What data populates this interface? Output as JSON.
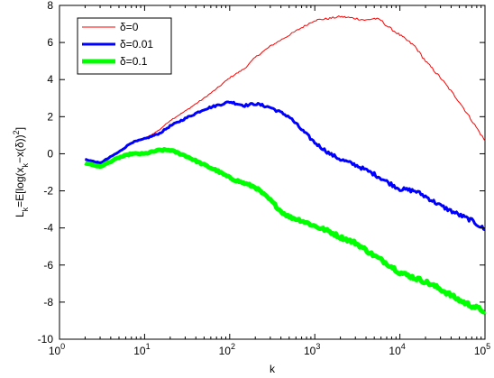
{
  "chart_data": {
    "type": "line",
    "title": "",
    "xlabel": "k",
    "ylabel": "L_k=E[log(x_k−x(δ))²]",
    "x_scale": "log",
    "xlim": [
      1,
      100000
    ],
    "ylim": [
      -10,
      8
    ],
    "grid": false,
    "legend_position": "top-left",
    "x_ticks": [
      {
        "value": 1,
        "base": "10",
        "exp": "0"
      },
      {
        "value": 10,
        "base": "10",
        "exp": "1"
      },
      {
        "value": 100,
        "base": "10",
        "exp": "2"
      },
      {
        "value": 1000,
        "base": "10",
        "exp": "3"
      },
      {
        "value": 10000,
        "base": "10",
        "exp": "4"
      },
      {
        "value": 100000,
        "base": "10",
        "exp": "5"
      }
    ],
    "y_ticks": [
      "-10",
      "-8",
      "-6",
      "-4",
      "-2",
      "0",
      "2",
      "4",
      "6",
      "8"
    ],
    "series": [
      {
        "name": "δ=0",
        "color": "#ff0000",
        "linewidth": 1,
        "x": [
          2,
          3,
          5,
          7,
          10,
          15,
          20,
          30,
          50,
          70,
          100,
          150,
          200,
          300,
          500,
          700,
          1000,
          1500,
          2000,
          3000,
          4000,
          5000,
          6000,
          7000,
          10000,
          15000,
          20000,
          30000,
          50000,
          70000,
          100000
        ],
        "y": [
          -0.3,
          -0.6,
          0.1,
          0.6,
          0.8,
          1.3,
          1.8,
          2.3,
          3.0,
          3.5,
          4.1,
          4.6,
          5.2,
          5.8,
          6.4,
          6.8,
          7.2,
          7.3,
          7.4,
          7.3,
          7.2,
          7.3,
          7.2,
          6.9,
          6.4,
          5.8,
          5.0,
          4.1,
          2.8,
          1.8,
          0.7
        ]
      },
      {
        "name": "δ=0.01",
        "color": "#0000ff",
        "linewidth": 3,
        "x": [
          2,
          3,
          5,
          7,
          10,
          15,
          20,
          30,
          50,
          70,
          100,
          150,
          200,
          300,
          500,
          700,
          1000,
          1500,
          2000,
          3000,
          5000,
          7000,
          10000,
          15000,
          20000,
          30000,
          50000,
          70000,
          100000
        ],
        "y": [
          -0.3,
          -0.5,
          0.1,
          0.6,
          0.8,
          1.1,
          1.5,
          1.9,
          2.4,
          2.6,
          2.8,
          2.6,
          2.7,
          2.5,
          2.0,
          1.3,
          0.6,
          0.0,
          -0.3,
          -0.6,
          -1.1,
          -1.5,
          -1.9,
          -2.0,
          -2.3,
          -2.8,
          -3.3,
          -3.6,
          -4.1
        ]
      },
      {
        "name": "δ=0.1",
        "color": "#00ff00",
        "linewidth": 5,
        "x": [
          2,
          3,
          5,
          7,
          10,
          15,
          20,
          30,
          50,
          70,
          100,
          150,
          200,
          300,
          400,
          500,
          700,
          1000,
          1500,
          2000,
          3000,
          5000,
          7000,
          10000,
          15000,
          20000,
          30000,
          50000,
          70000,
          100000
        ],
        "y": [
          -0.5,
          -0.7,
          -0.2,
          0.0,
          0.0,
          0.2,
          0.2,
          -0.1,
          -0.6,
          -0.9,
          -1.3,
          -1.6,
          -1.8,
          -2.5,
          -3.1,
          -3.4,
          -3.6,
          -3.9,
          -4.2,
          -4.5,
          -4.8,
          -5.5,
          -5.9,
          -6.4,
          -6.7,
          -6.9,
          -7.3,
          -7.9,
          -8.2,
          -8.5
        ]
      }
    ]
  }
}
